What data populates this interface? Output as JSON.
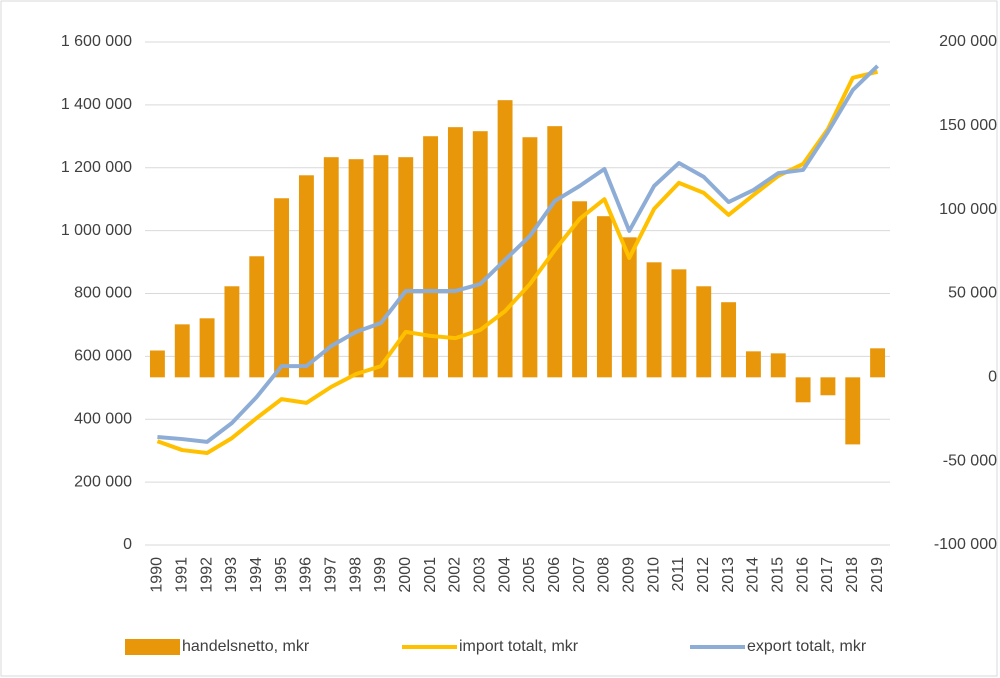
{
  "chart_data": {
    "type": "combo",
    "categories": [
      "1990",
      "1991",
      "1992",
      "1993",
      "1994",
      "1995",
      "1996",
      "1997",
      "1998",
      "1999",
      "2000",
      "2001",
      "2002",
      "2003",
      "2004",
      "2005",
      "2006",
      "2007",
      "2008",
      "2009",
      "2010",
      "2011",
      "2012",
      "2013",
      "2014",
      "2015",
      "2016",
      "2017",
      "2018",
      "2019"
    ],
    "series": [
      {
        "name": "handelsnetto, mkr",
        "type": "bar",
        "axis": "y2",
        "color": "#e8960a",
        "values": [
          16000,
          31600,
          35200,
          54300,
          72200,
          106800,
          120500,
          131300,
          130100,
          132500,
          131300,
          143800,
          149200,
          146800,
          165300,
          143200,
          149800,
          105000,
          96100,
          83500,
          68600,
          64400,
          54300,
          44800,
          15500,
          14300,
          -14900,
          -10700,
          -40000,
          17300
        ]
      },
      {
        "name": "import totalt, mkr",
        "type": "line",
        "color": "#ffc000",
        "values": [
          330000,
          302000,
          292600,
          340000,
          404000,
          464000,
          452000,
          503000,
          544000,
          569000,
          678000,
          665000,
          658000,
          684000,
          744000,
          830000,
          938000,
          1037000,
          1100000,
          913000,
          1069000,
          1152000,
          1120000,
          1050000,
          1113000,
          1174000,
          1212000,
          1323000,
          1486000,
          1505000
        ]
      },
      {
        "name": "export totalt, mkr",
        "type": "line",
        "color": "#8eadd6",
        "values": [
          343600,
          337000,
          328000,
          388000,
          471000,
          569000,
          569000,
          633000,
          678000,
          706000,
          808000,
          808000,
          808000,
          830000,
          907000,
          983000,
          1094000,
          1142000,
          1196000,
          999000,
          1142000,
          1215000,
          1171000,
          1091000,
          1129000,
          1183000,
          1193000,
          1314000,
          1447000,
          1524000
        ]
      }
    ],
    "ylim": [
      0,
      1600000
    ],
    "yticks": [
      0,
      {
        "value": 200000,
        "label": "200 000"
      },
      {
        "value": 400000,
        "label": "400 000"
      },
      {
        "value": 600000,
        "label": "600 000"
      },
      {
        "value": 800000,
        "label": "800 000"
      },
      {
        "value": 1000000,
        "label": "1 000 000"
      },
      {
        "value": 1200000,
        "label": "1 200 000"
      },
      {
        "value": 1400000,
        "label": "1 400 000"
      },
      {
        "value": 1600000,
        "label": "1 600 000"
      }
    ],
    "y2lim": [
      -100000,
      200000
    ],
    "y2ticks": [
      {
        "value": -100000,
        "label": "-100 000"
      },
      {
        "value": -50000,
        "label": "-50 000"
      },
      0,
      {
        "value": 50000,
        "label": "50 000"
      },
      {
        "value": 100000,
        "label": "100 000"
      },
      {
        "value": 150000,
        "label": "150 000"
      },
      {
        "value": 200000,
        "label": "200 000"
      }
    ],
    "grid": true,
    "legend": "bottom"
  }
}
